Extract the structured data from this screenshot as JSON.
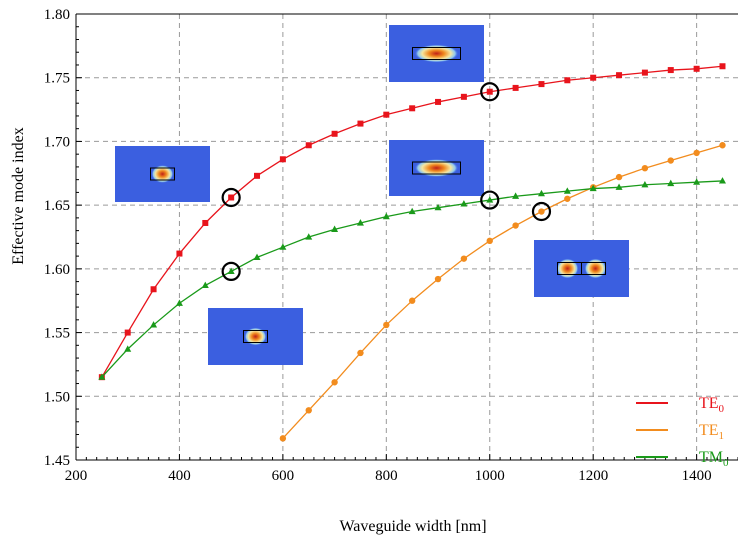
{
  "chart_data": {
    "type": "line",
    "title": "",
    "xlabel": "Waveguide width [nm]",
    "ylabel": "Effective mode index",
    "xlim": [
      200,
      1480
    ],
    "ylim": [
      1.45,
      1.8
    ],
    "xticks": [
      "200",
      "400",
      "600",
      "800",
      "1000",
      "1200",
      "1400"
    ],
    "yticks": [
      "1.45",
      "1.50",
      "1.55",
      "1.60",
      "1.65",
      "1.70",
      "1.75",
      "1.80"
    ],
    "grid": true,
    "legend_position": "bottom-right",
    "series": [
      {
        "name": "TE",
        "subscript": "0",
        "color": "#e8141c",
        "marker": "square",
        "x": [
          250,
          300,
          350,
          400,
          450,
          500,
          550,
          600,
          650,
          700,
          750,
          800,
          850,
          900,
          950,
          1000,
          1050,
          1100,
          1150,
          1200,
          1250,
          1300,
          1350,
          1400,
          1450
        ],
        "y": [
          1.515,
          1.55,
          1.584,
          1.612,
          1.636,
          1.656,
          1.673,
          1.686,
          1.697,
          1.706,
          1.714,
          1.721,
          1.726,
          1.731,
          1.735,
          1.739,
          1.742,
          1.745,
          1.748,
          1.75,
          1.752,
          1.754,
          1.756,
          1.757,
          1.759
        ]
      },
      {
        "name": "TE",
        "subscript": "1",
        "color": "#f28c1e",
        "marker": "circle",
        "x": [
          600,
          650,
          700,
          750,
          800,
          850,
          900,
          950,
          1000,
          1050,
          1100,
          1150,
          1200,
          1250,
          1300,
          1350,
          1400,
          1450
        ],
        "y": [
          1.467,
          1.489,
          1.511,
          1.534,
          1.556,
          1.575,
          1.592,
          1.608,
          1.622,
          1.634,
          1.645,
          1.655,
          1.664,
          1.672,
          1.679,
          1.685,
          1.691,
          1.697
        ]
      },
      {
        "name": "TM",
        "subscript": "0",
        "color": "#1a9a1a",
        "marker": "triangle",
        "x": [
          250,
          300,
          350,
          400,
          450,
          500,
          550,
          600,
          650,
          700,
          750,
          800,
          850,
          900,
          950,
          1000,
          1050,
          1100,
          1150,
          1200,
          1250,
          1300,
          1350,
          1400,
          1450
        ],
        "y": [
          1.515,
          1.537,
          1.556,
          1.573,
          1.587,
          1.598,
          1.609,
          1.617,
          1.625,
          1.631,
          1.636,
          1.641,
          1.645,
          1.648,
          1.651,
          1.654,
          1.657,
          1.659,
          1.661,
          1.663,
          1.664,
          1.666,
          1.667,
          1.668,
          1.669
        ]
      }
    ],
    "highlighted_points": [
      {
        "x": 500,
        "y": 1.656
      },
      {
        "x": 500,
        "y": 1.598
      },
      {
        "x": 1000,
        "y": 1.739
      },
      {
        "x": 1000,
        "y": 1.654
      },
      {
        "x": 1100,
        "y": 1.645
      }
    ],
    "mode_profile_insets": [
      {
        "mode": "TE0 at 500 nm",
        "lobes": 1,
        "colors": {
          "background": "#3b5fe0",
          "field": "#c0301c"
        }
      },
      {
        "mode": "TM0 at 500 nm",
        "lobes": 1,
        "colors": {
          "background": "#3b5fe0",
          "field": "#c0301c"
        }
      },
      {
        "mode": "TE0 at 1000 nm",
        "lobes": 1,
        "colors": {
          "background": "#3b5fe0",
          "field": "#c0301c"
        }
      },
      {
        "mode": "TM0 at 1000 nm",
        "lobes": 1,
        "colors": {
          "background": "#3b5fe0",
          "field": "#c0301c"
        }
      },
      {
        "mode": "TE1 at 1100 nm",
        "lobes": 2,
        "colors": {
          "background": "#3b5fe0",
          "field": "#c0301c"
        }
      }
    ]
  }
}
